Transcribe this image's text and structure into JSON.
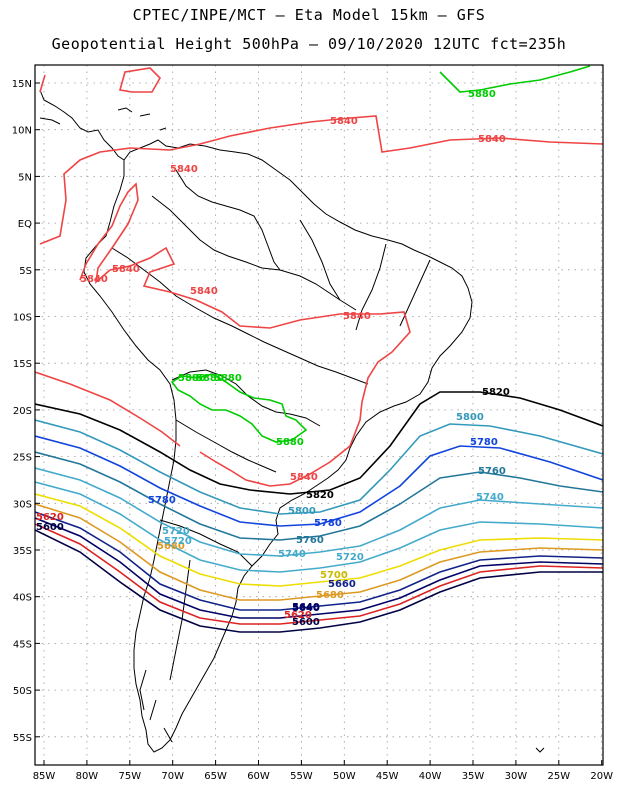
{
  "title": {
    "line1": "CPTEC/INPE/MCT –  Eta Model 15km – GFS",
    "line2": "Geopotential Height 500hPa – 09/10/2020 12UTC fct=235h"
  },
  "axes": {
    "lat_labels": [
      "15N",
      "10N",
      "5N",
      "EQ",
      "5S",
      "10S",
      "15S",
      "20S",
      "25S",
      "30S",
      "35S",
      "40S",
      "45S",
      "50S",
      "55S"
    ],
    "lon_labels": [
      "85W",
      "80W",
      "75W",
      "70W",
      "65W",
      "60W",
      "55W",
      "50W",
      "45W",
      "40W",
      "35W",
      "30W",
      "25W",
      "20W"
    ]
  },
  "chart_data": {
    "type": "contour",
    "variable": "Geopotential Height 500hPa",
    "contours": [
      {
        "level": 5880,
        "color": "#00cc00",
        "label": "5880"
      },
      {
        "level": 5840,
        "color": "#ee4444",
        "label": "5840"
      },
      {
        "level": 5820,
        "color": "#000000",
        "label": "5820"
      },
      {
        "level": 5800,
        "color": "#3399bb",
        "label": "5800"
      },
      {
        "level": 5780,
        "color": "#1144dd",
        "label": "5780"
      },
      {
        "level": 5760,
        "color": "#227799",
        "label": "5760"
      },
      {
        "level": 5740,
        "color": "#44aacc",
        "label": "5740"
      },
      {
        "level": 5720,
        "color": "#44aacc",
        "label": "5720"
      },
      {
        "level": 5700,
        "color": "#eedd00",
        "label": "5700"
      },
      {
        "level": 5680,
        "color": "#dd9922",
        "label": "5680"
      },
      {
        "level": 5660,
        "color": "#112288",
        "label": "5660"
      },
      {
        "level": 5640,
        "color": "#000066",
        "label": "5640"
      },
      {
        "level": 5620,
        "color": "#dd2222",
        "label": "5620"
      },
      {
        "level": 5600,
        "color": "#000044",
        "label": "5600"
      }
    ],
    "extra_labels": [
      "5880",
      "5840",
      "5840",
      "5840",
      "5840",
      "5840",
      "5840",
      "5840",
      "5880",
      "5880",
      "5880",
      "5880",
      "5840",
      "5800",
      "5780",
      "5760",
      "5740",
      "5720",
      "5700",
      "5680",
      "5660",
      "5640",
      "5620",
      "5600",
      "5600",
      "5620",
      "5680",
      "5720",
      "5780",
      "5820",
      "5800",
      "5780",
      "5760",
      "5740",
      "5720"
    ]
  }
}
